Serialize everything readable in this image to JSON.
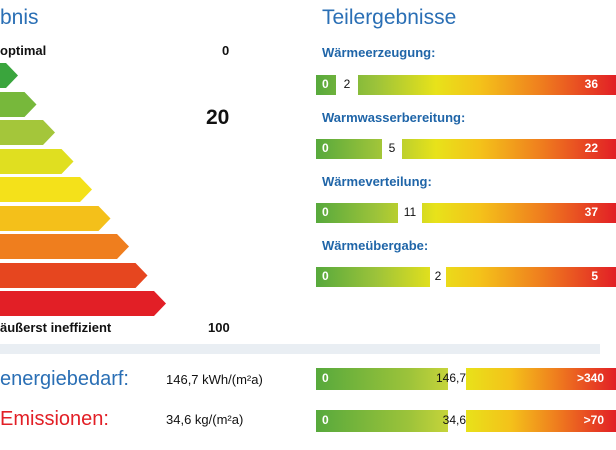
{
  "left": {
    "title": "bnis",
    "top_label": "optimal",
    "top_value": "0",
    "score": "20",
    "bottom_label": "äußerst ineffizient",
    "bottom_value": "100",
    "ladder_colors": [
      "#3aa53d",
      "#77b83b",
      "#a4c63a",
      "#e0df20",
      "#f4e11a",
      "#f4c01a",
      "#ef7e1e",
      "#e6461f",
      "#e21f26"
    ]
  },
  "right": {
    "title": "Teilergebnisse",
    "rows": [
      {
        "label": "Wärmeerzeugung:",
        "min": "0",
        "value": "2",
        "max": "36",
        "fraction": 0.055
      },
      {
        "label": "Warmwasserbereitung:",
        "min": "0",
        "value": "5",
        "max": "22",
        "fraction": 0.227
      },
      {
        "label": "Wärmeverteilung:",
        "min": "0",
        "value": "11",
        "max": "37",
        "fraction": 0.297
      },
      {
        "label": "Wärmeübergabe:",
        "min": "0",
        "value": "2",
        "max": "5",
        "fraction": 0.4
      }
    ]
  },
  "bottom": {
    "energy": {
      "label": "energiebedarf:",
      "value": "146,7 kWh/(m²a)",
      "bar_min": "0",
      "bar_value": "146,7",
      "bar_max": ">340"
    },
    "emissions": {
      "label": "Emissionen:",
      "value": "34,6 kg/(m²a)",
      "bar_min": "0",
      "bar_value": "34,6",
      "bar_max": ">70"
    }
  }
}
